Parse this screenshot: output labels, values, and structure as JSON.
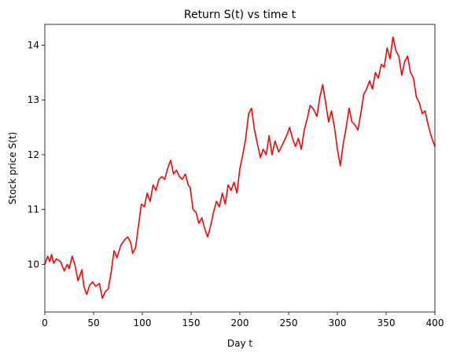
{
  "chart_data": {
    "type": "line",
    "title": "Return S(t) vs time t",
    "xlabel": "Day t",
    "ylabel": "Stock price S(t)",
    "xlim": [
      0,
      400
    ],
    "ylim": [
      9.13,
      14.38
    ],
    "grid": false,
    "x_ticks": [
      0,
      50,
      100,
      150,
      200,
      250,
      300,
      350,
      400
    ],
    "y_ticks": [
      10,
      11,
      12,
      13,
      14
    ],
    "series": [
      {
        "color": "#ff0000",
        "points": [
          [
            0,
            10.0
          ],
          [
            3,
            10.15
          ],
          [
            5,
            10.05
          ],
          [
            7,
            10.18
          ],
          [
            9,
            10.02
          ],
          [
            12,
            10.1
          ],
          [
            16,
            10.05
          ],
          [
            20,
            9.88
          ],
          [
            23,
            10.0
          ],
          [
            25,
            9.92
          ],
          [
            28,
            10.15
          ],
          [
            31,
            9.98
          ],
          [
            34,
            9.7
          ],
          [
            38,
            9.9
          ],
          [
            40,
            9.6
          ],
          [
            43,
            9.45
          ],
          [
            46,
            9.62
          ],
          [
            49,
            9.68
          ],
          [
            52,
            9.6
          ],
          [
            56,
            9.65
          ],
          [
            59,
            9.38
          ],
          [
            62,
            9.5
          ],
          [
            65,
            9.55
          ],
          [
            68,
            9.85
          ],
          [
            71,
            10.25
          ],
          [
            74,
            10.12
          ],
          [
            78,
            10.35
          ],
          [
            82,
            10.45
          ],
          [
            85,
            10.5
          ],
          [
            88,
            10.4
          ],
          [
            90,
            10.2
          ],
          [
            93,
            10.3
          ],
          [
            96,
            10.7
          ],
          [
            99,
            11.1
          ],
          [
            102,
            11.05
          ],
          [
            105,
            11.3
          ],
          [
            108,
            11.15
          ],
          [
            111,
            11.45
          ],
          [
            114,
            11.35
          ],
          [
            117,
            11.55
          ],
          [
            120,
            11.6
          ],
          [
            123,
            11.55
          ],
          [
            126,
            11.75
          ],
          [
            129,
            11.9
          ],
          [
            132,
            11.65
          ],
          [
            135,
            11.72
          ],
          [
            138,
            11.6
          ],
          [
            141,
            11.55
          ],
          [
            144,
            11.65
          ],
          [
            147,
            11.45
          ],
          [
            149,
            11.4
          ],
          [
            152,
            11.0
          ],
          [
            155,
            10.95
          ],
          [
            158,
            10.75
          ],
          [
            161,
            10.85
          ],
          [
            164,
            10.65
          ],
          [
            167,
            10.5
          ],
          [
            170,
            10.7
          ],
          [
            173,
            10.95
          ],
          [
            176,
            11.15
          ],
          [
            179,
            11.05
          ],
          [
            182,
            11.3
          ],
          [
            185,
            11.1
          ],
          [
            188,
            11.45
          ],
          [
            191,
            11.35
          ],
          [
            194,
            11.5
          ],
          [
            197,
            11.3
          ],
          [
            200,
            11.75
          ],
          [
            203,
            12.0
          ],
          [
            206,
            12.3
          ],
          [
            209,
            12.75
          ],
          [
            212,
            12.85
          ],
          [
            215,
            12.45
          ],
          [
            218,
            12.2
          ],
          [
            221,
            11.95
          ],
          [
            224,
            12.1
          ],
          [
            227,
            12.0
          ],
          [
            230,
            12.35
          ],
          [
            233,
            12.0
          ],
          [
            236,
            12.25
          ],
          [
            240,
            12.05
          ],
          [
            244,
            12.2
          ],
          [
            248,
            12.35
          ],
          [
            251,
            12.5
          ],
          [
            254,
            12.3
          ],
          [
            257,
            12.15
          ],
          [
            260,
            12.3
          ],
          [
            263,
            12.1
          ],
          [
            266,
            12.45
          ],
          [
            269,
            12.65
          ],
          [
            272,
            12.9
          ],
          [
            275,
            12.85
          ],
          [
            279,
            12.7
          ],
          [
            282,
            13.05
          ],
          [
            285,
            13.28
          ],
          [
            288,
            12.95
          ],
          [
            291,
            12.6
          ],
          [
            294,
            12.8
          ],
          [
            297,
            12.5
          ],
          [
            300,
            12.1
          ],
          [
            303,
            11.8
          ],
          [
            306,
            12.2
          ],
          [
            309,
            12.5
          ],
          [
            312,
            12.85
          ],
          [
            315,
            12.6
          ],
          [
            318,
            12.55
          ],
          [
            321,
            12.45
          ],
          [
            324,
            12.75
          ],
          [
            327,
            13.1
          ],
          [
            330,
            13.2
          ],
          [
            333,
            13.35
          ],
          [
            336,
            13.2
          ],
          [
            339,
            13.5
          ],
          [
            342,
            13.4
          ],
          [
            345,
            13.65
          ],
          [
            348,
            13.6
          ],
          [
            351,
            13.95
          ],
          [
            354,
            13.75
          ],
          [
            357,
            14.15
          ],
          [
            360,
            13.9
          ],
          [
            363,
            13.8
          ],
          [
            366,
            13.45
          ],
          [
            369,
            13.7
          ],
          [
            372,
            13.8
          ],
          [
            375,
            13.5
          ],
          [
            378,
            13.4
          ],
          [
            381,
            13.05
          ],
          [
            384,
            12.95
          ],
          [
            387,
            12.75
          ],
          [
            390,
            12.8
          ],
          [
            393,
            12.55
          ],
          [
            396,
            12.35
          ],
          [
            400,
            12.15
          ]
        ]
      }
    ]
  }
}
